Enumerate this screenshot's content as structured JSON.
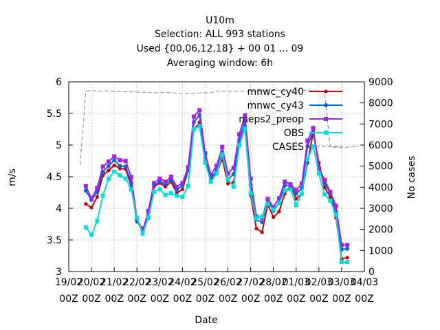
{
  "chart_data": {
    "type": "line",
    "title": [
      "U10m",
      "Selection: ALL    993 stations",
      "Used {00,06,12,18} + 00 01 ... 09",
      "Averaging window:  6h"
    ],
    "xlabel": "Date",
    "ylabel": "m/s",
    "y2label": "No cases",
    "ylim": [
      3,
      6
    ],
    "y2lim": [
      0,
      9000
    ],
    "y_ticks": [
      "3",
      "3.5",
      "4",
      "4.5",
      "5",
      "5.5",
      "6"
    ],
    "y2_ticks": [
      "0",
      "1000",
      "2000",
      "3000",
      "4000",
      "5000",
      "6000",
      "7000",
      "8000",
      "9000"
    ],
    "x_ticks": [
      {
        "date": "19/02",
        "time": "00Z"
      },
      {
        "date": "20/02",
        "time": "00Z"
      },
      {
        "date": "21/02",
        "time": "00Z"
      },
      {
        "date": "22/02",
        "time": "00Z"
      },
      {
        "date": "23/02",
        "time": "00Z"
      },
      {
        "date": "24/02",
        "time": "00Z"
      },
      {
        "date": "25/02",
        "time": "00Z"
      },
      {
        "date": "26/02",
        "time": "00Z"
      },
      {
        "date": "27/02",
        "time": "00Z"
      },
      {
        "date": "28/02",
        "time": "00Z"
      },
      {
        "date": "01/03",
        "time": "00Z"
      },
      {
        "date": "02/03",
        "time": "00Z"
      },
      {
        "date": "03/03",
        "time": "00Z"
      },
      {
        "date": "04/03",
        "time": "00Z"
      }
    ],
    "x_start": "2024-02-19T00:00Z",
    "x_step_hours": 6,
    "grid": true,
    "legend": "top-right",
    "series": [
      {
        "name": "mnwc_cy40",
        "color": "#cc0000",
        "marker": "plus-circle",
        "axis": "left",
        "x_start_hours": 18,
        "values": [
          4.07,
          4.01,
          4.18,
          4.52,
          4.6,
          4.68,
          4.63,
          4.62,
          4.35,
          3.79,
          3.68,
          3.84,
          4.34,
          4.4,
          4.34,
          4.42,
          4.24,
          4.3,
          4.6,
          5.24,
          5.36,
          4.74,
          4.42,
          4.57,
          4.78,
          4.39,
          4.41,
          5.0,
          5.29,
          4.21,
          3.68,
          3.62,
          4.06,
          3.86,
          3.95,
          4.23,
          4.36,
          4.15,
          4.23,
          4.72,
          5.2,
          4.72,
          4.33,
          4.18,
          3.85,
          3.2,
          3.22
        ]
      },
      {
        "name": "mnwc_cy43",
        "color": "#0066cc",
        "marker": "star",
        "axis": "left",
        "x_start_hours": 18,
        "values": [
          4.28,
          4.13,
          4.26,
          4.58,
          4.67,
          4.76,
          4.67,
          4.66,
          4.4,
          3.81,
          3.62,
          3.94,
          4.36,
          4.42,
          4.38,
          4.46,
          4.29,
          4.36,
          4.62,
          5.36,
          5.47,
          4.8,
          4.47,
          4.61,
          4.88,
          4.46,
          4.54,
          5.08,
          5.38,
          4.37,
          3.82,
          3.78,
          4.13,
          3.96,
          4.09,
          4.36,
          4.37,
          4.23,
          4.32,
          4.98,
          5.22,
          4.65,
          4.4,
          4.24,
          3.94,
          3.35,
          3.36
        ]
      },
      {
        "name": "meps2_preop",
        "color": "#a020f0",
        "marker": "square",
        "axis": "left",
        "x_start_hours": 18,
        "values": [
          4.35,
          4.16,
          4.32,
          4.66,
          4.74,
          4.82,
          4.76,
          4.75,
          4.49,
          3.84,
          3.64,
          3.96,
          4.4,
          4.47,
          4.42,
          4.5,
          4.34,
          4.4,
          4.65,
          5.45,
          5.55,
          4.87,
          4.53,
          4.67,
          4.97,
          4.55,
          4.64,
          5.17,
          5.47,
          4.47,
          3.87,
          3.85,
          4.15,
          4.02,
          4.16,
          4.42,
          4.38,
          4.29,
          4.39,
          5.07,
          5.27,
          4.63,
          4.45,
          4.26,
          4.04,
          3.42,
          3.42
        ]
      },
      {
        "name": "OBS",
        "color": "#00dddd",
        "marker": "square",
        "axis": "left",
        "x_start_hours": 18,
        "values": [
          3.7,
          3.58,
          3.8,
          4.2,
          4.47,
          4.58,
          4.52,
          4.47,
          4.3,
          3.85,
          3.6,
          3.85,
          4.26,
          4.3,
          4.21,
          4.24,
          4.2,
          4.18,
          4.35,
          5.25,
          5.3,
          4.72,
          4.42,
          4.55,
          4.85,
          4.46,
          4.34,
          5.0,
          5.26,
          4.24,
          3.84,
          3.87,
          4.07,
          3.98,
          4.08,
          4.28,
          4.3,
          4.05,
          4.23,
          4.78,
          4.98,
          4.55,
          4.22,
          4.12,
          3.9,
          3.15,
          3.15
        ]
      },
      {
        "name": "CASES",
        "color": "#999999",
        "marker": "none",
        "dash": true,
        "axis": "right",
        "x_start_hours": 12,
        "values": [
          5050,
          8550,
          8580,
          8560,
          8570,
          8570,
          8540,
          8530,
          8530,
          8530,
          8510,
          8500,
          8490,
          8480,
          8480,
          8490,
          8480,
          8460,
          8460,
          8450,
          8450,
          8470,
          8480,
          8480,
          8560,
          8560,
          8560,
          8550,
          8560,
          8560,
          8550,
          8540,
          8600,
          8600,
          8590,
          8580,
          8570,
          8540,
          8600,
          8600,
          8590,
          8560,
          8580,
          8500,
          5900,
          5900,
          5880,
          5900,
          5920,
          5950
        ]
      }
    ]
  }
}
